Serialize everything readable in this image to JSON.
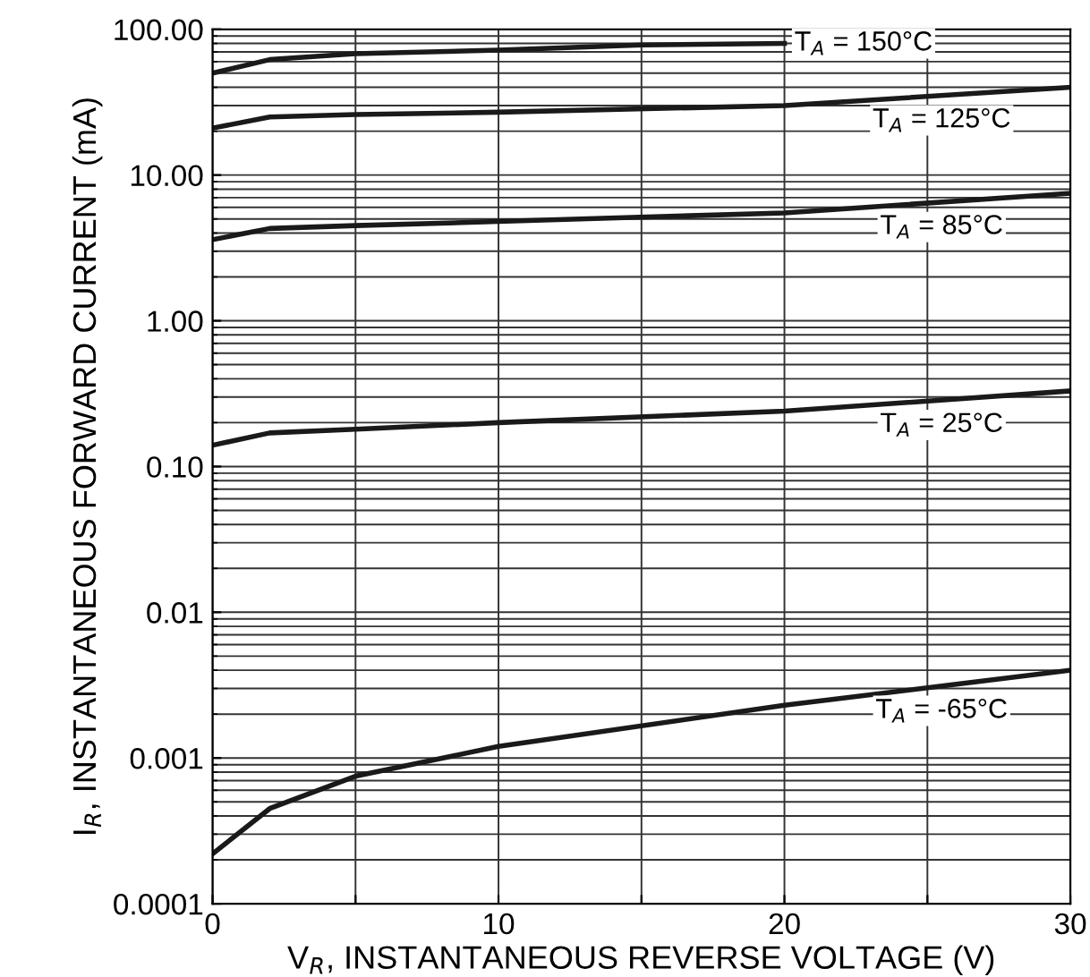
{
  "chart_data": {
    "type": "line",
    "xlabel": "V$_{R}$, INSTANTANEOUS REVERSE VOLTAGE (V)",
    "ylabel": "I$_{R}$, INSTANTANEOUS FORWARD CURRENT (mA)",
    "log": "y",
    "grid": true,
    "legend": false,
    "marker": "none",
    "line_style": "solid",
    "xlim": [
      0,
      30
    ],
    "xticks": [
      0,
      {
        "value": 5,
        "label": null
      },
      10,
      {
        "value": 15,
        "label": null
      },
      20,
      {
        "value": 25,
        "label": null
      },
      30
    ],
    "ylim": [
      0.0001,
      100
    ],
    "yticks": [
      0.0001,
      0.001,
      0.01,
      {
        "value": 0.1,
        "label": "0.10"
      },
      {
        "value": 1,
        "label": "1.00"
      },
      {
        "value": 10,
        "label": "10.00"
      },
      {
        "value": 100,
        "label": "100.00"
      }
    ],
    "series": [
      {
        "name": "T$_{A}$ = 150°C",
        "color": "#1a1a1a",
        "x": [
          0,
          2,
          5,
          10,
          15,
          20
        ],
        "values": [
          50,
          62,
          68,
          72,
          78,
          80
        ]
      },
      {
        "name": "T$_{A}$ = 125°C",
        "color": "#1a1a1a",
        "x": [
          0,
          2,
          5,
          10,
          20,
          30
        ],
        "values": [
          21,
          25,
          26,
          27,
          30,
          40
        ]
      },
      {
        "name": "T$_{A}$ = 85°C",
        "color": "#1a1a1a",
        "x": [
          0,
          2,
          5,
          10,
          20,
          30
        ],
        "values": [
          3.6,
          4.3,
          4.5,
          4.8,
          5.5,
          7.5
        ]
      },
      {
        "name": "T$_{A}$ = 25°C",
        "color": "#1a1a1a",
        "x": [
          0,
          2,
          5,
          10,
          20,
          30
        ],
        "values": [
          0.14,
          0.17,
          0.18,
          0.2,
          0.24,
          0.33
        ]
      },
      {
        "name": "T$_{A}$ = -65°C",
        "color": "#1a1a1a",
        "x": [
          0,
          2,
          5,
          10,
          20,
          30
        ],
        "values": [
          0.00022,
          0.00045,
          0.00075,
          0.0012,
          0.0023,
          0.004
        ]
      }
    ]
  }
}
